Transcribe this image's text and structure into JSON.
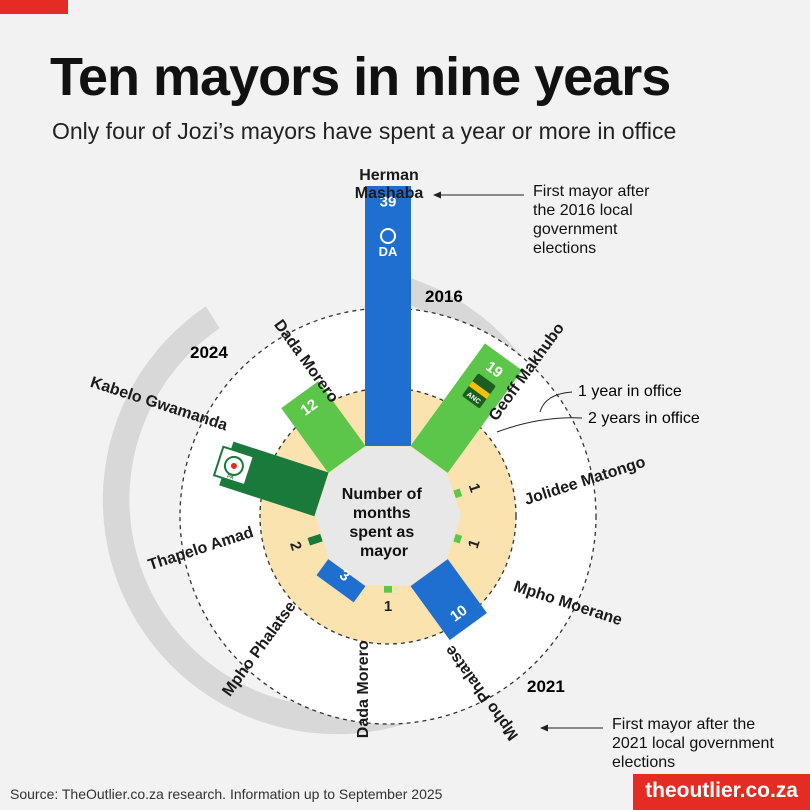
{
  "header": {
    "title": "Ten mayors in nine years",
    "subtitle": "Only four of Jozi’s mayors have spent a year or more in office"
  },
  "chart_data": {
    "type": "radial-bar",
    "center_label": [
      "Number of",
      "months",
      "spent as",
      "mayor"
    ],
    "ring_labels": {
      "one_year": "1 year in office",
      "two_years": "2 years in office"
    },
    "year_labels": [
      "2016",
      "2021",
      "2024"
    ],
    "annotations": [
      {
        "text": [
          "First mayor after",
          "the 2016 local",
          "government",
          "elections"
        ]
      },
      {
        "text": [
          "First mayor after the",
          "2021 local government",
          "elections"
        ]
      }
    ],
    "party_logos": [
      "DA",
      "ANC",
      "PA"
    ],
    "colors": {
      "DA": "#1f6fd1",
      "ANC": "#5cc64b",
      "PA": "#1a7a3c"
    },
    "mayors": [
      {
        "name": "Herman Mashaba",
        "months": 39,
        "party": "DA"
      },
      {
        "name": "Geoff Makhubo",
        "months": 19,
        "party": "ANC"
      },
      {
        "name": "Jolidee Matongo",
        "months": 1,
        "party": "ANC"
      },
      {
        "name": "Mpho Moerane",
        "months": 1,
        "party": "ANC"
      },
      {
        "name": "Mpho Phalatse",
        "months": 10,
        "party": "DA"
      },
      {
        "name": "Dada Morero",
        "months": 1,
        "party": "ANC"
      },
      {
        "name": "Mpho Phalatse",
        "months": 3,
        "party": "DA"
      },
      {
        "name": "Thapelo Amad",
        "months": 2,
        "party": "PA"
      },
      {
        "name": "Kabelo Gwamanda",
        "months": 15,
        "party": "PA"
      },
      {
        "name": "Dada Morero",
        "months": 12,
        "party": "ANC"
      }
    ]
  },
  "footer": {
    "source": "Source: TheOutlier.co.za research. Information up to September 2025",
    "brand": "theoutlier.co.za"
  }
}
